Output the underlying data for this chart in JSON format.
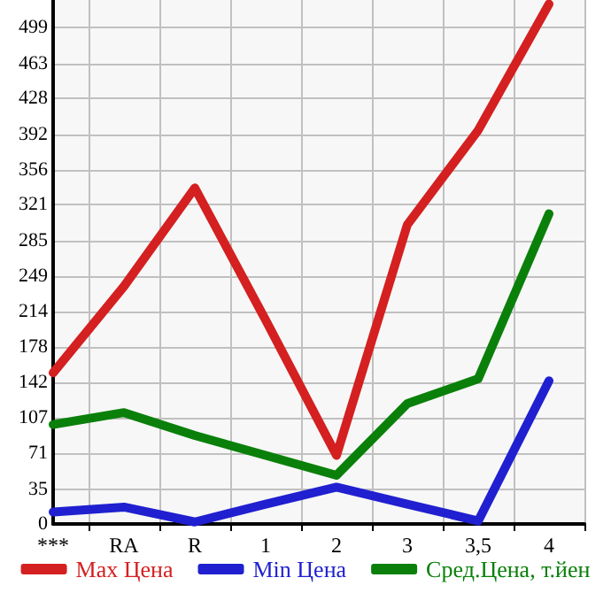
{
  "chart_data": {
    "type": "line",
    "categories": [
      "***",
      "RA",
      "R",
      "1",
      "2",
      "3",
      "3,5",
      "4"
    ],
    "series": [
      {
        "name": "Max Цена",
        "color": "#d42020",
        "values": [
          152,
          239,
          338,
          205,
          69,
          301,
          396,
          523
        ]
      },
      {
        "name": "Min Цена",
        "color": "#2020d0",
        "values": [
          12,
          17,
          2,
          20,
          37,
          20,
          3,
          144
        ]
      },
      {
        "name": "Сред.Цена, т.йен",
        "color": "#0a800a",
        "values": [
          100,
          112,
          89,
          69,
          49,
          121,
          146,
          312
        ]
      }
    ],
    "ylim": [
      0,
      527
    ],
    "yticks": [
      0,
      35,
      71,
      107,
      142,
      178,
      214,
      249,
      285,
      321,
      356,
      392,
      428,
      463,
      499
    ],
    "grid": true,
    "legend": "bottom",
    "marker": "none",
    "line_style": "solid"
  }
}
